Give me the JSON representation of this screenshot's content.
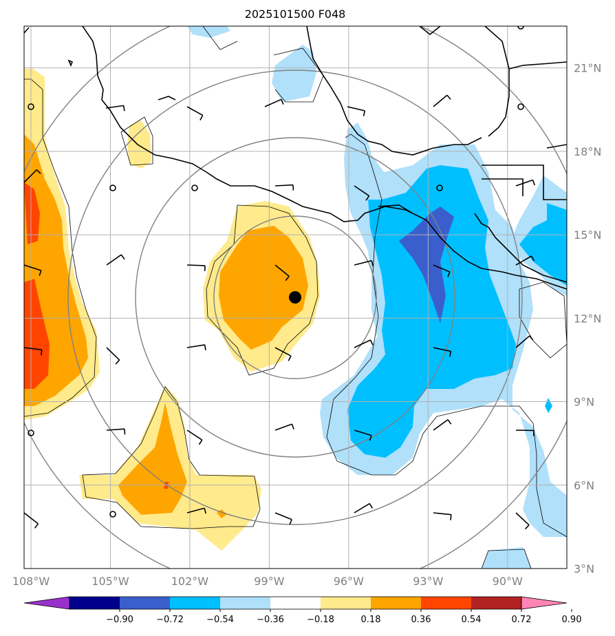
{
  "title": "2025101500 F048",
  "map": {
    "lon_range": [
      -108,
      -87.5
    ],
    "lat_range": [
      3,
      22.5
    ],
    "lon_ticks": [
      {
        "value": -108,
        "label": "108°W"
      },
      {
        "value": -105,
        "label": "105°W"
      },
      {
        "value": -102,
        "label": "102°W"
      },
      {
        "value": -99,
        "label": "99°W"
      },
      {
        "value": -96,
        "label": "96°W"
      },
      {
        "value": -93,
        "label": "93°W"
      },
      {
        "value": -90,
        "label": "90°W"
      }
    ],
    "lat_ticks": [
      {
        "value": 3,
        "label": "3°N"
      },
      {
        "value": 6,
        "label": "6°N"
      },
      {
        "value": 9,
        "label": "9°N"
      },
      {
        "value": 12,
        "label": "12°N"
      },
      {
        "value": 15,
        "label": "15°N"
      },
      {
        "value": 18,
        "label": "18°N"
      },
      {
        "value": 21,
        "label": "21°N"
      }
    ],
    "gridlines": true,
    "storm_center": {
      "lon": -98.3,
      "lat": 12.9
    },
    "range_ring_center": {
      "lon": -98.3,
      "lat": 12.9
    }
  },
  "colorbar": {
    "labels": [
      "−0.90",
      "−0.72",
      "−0.54",
      "−0.36",
      "−0.18",
      "0.18",
      "0.36",
      "0.54",
      "0.72",
      "0.90"
    ],
    "colors": [
      "#9932cc",
      "#00008b",
      "#3a5fcd",
      "#00bfff",
      "#b0e0fa",
      "#ffffff",
      "#ffea8c",
      "#ffa500",
      "#ff4500",
      "#b22222",
      "#ff86b4"
    ]
  },
  "field_colors": {
    "orange": "#ffa500",
    "red_orange": "#ff4500",
    "yellow": "#ffea8c",
    "light_blue": "#b0e0fa",
    "blue": "#00bfff",
    "dark_blue": "#3a5fcd"
  }
}
